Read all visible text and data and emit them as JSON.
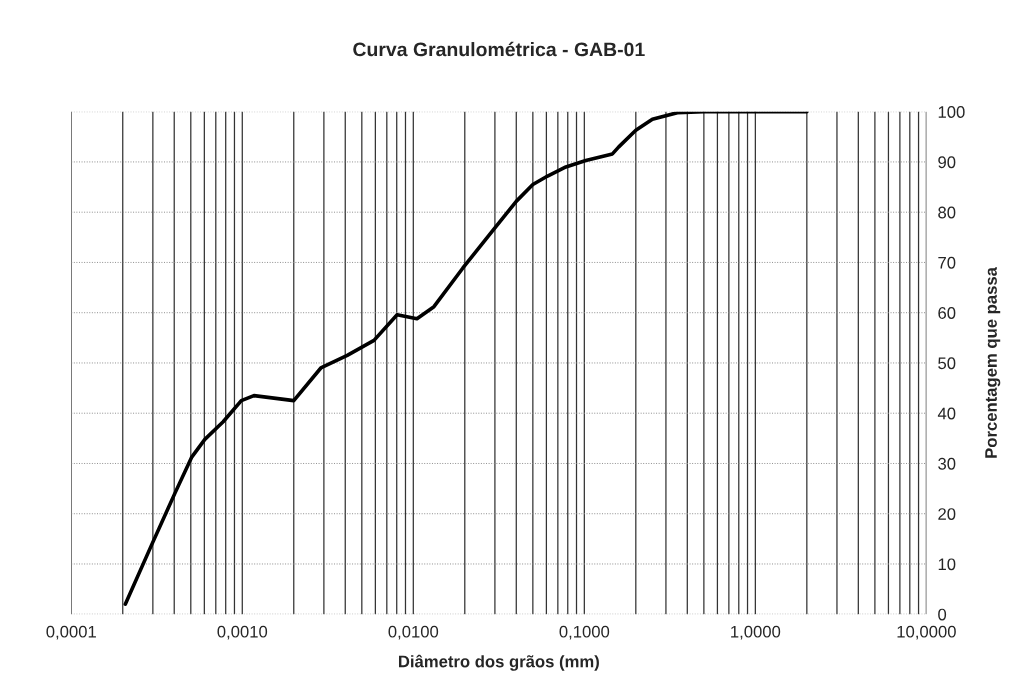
{
  "chart_data": {
    "type": "line",
    "title": "Curva Granulométrica - GAB-01",
    "xlabel": "Diâmetro dos grãos (mm)",
    "ylabel": "Porcentagem que passa",
    "log": "x",
    "grid": true,
    "marker": "none",
    "line_style": "solid",
    "x": [
      0.000207,
      0.000296,
      0.000404,
      0.000505,
      0.000604,
      0.000773,
      0.000987,
      0.00117,
      0.002,
      0.00288,
      0.00411,
      0.00589,
      0.00804,
      0.0105,
      0.0132,
      0.0195,
      0.0292,
      0.0401,
      0.05,
      0.061,
      0.078,
      0.102,
      0.146,
      0.159,
      0.2,
      0.25,
      0.35,
      0.5,
      1.0,
      2.0
    ],
    "series": [
      {
        "color": "#000000",
        "values": [
          2,
          13.9,
          24.1,
          31.2,
          34.8,
          38.3,
          42.5,
          43.5,
          42.5,
          49,
          51.5,
          54.5,
          59.6,
          58.8,
          61.2,
          68.9,
          76.4,
          82.2,
          85.5,
          87.2,
          89,
          90.3,
          91.6,
          93,
          96.3,
          98.5,
          99.8,
          100,
          100,
          100
        ]
      }
    ],
    "xlim": [
      0.0001,
      10
    ],
    "ylim": [
      0,
      100
    ],
    "xticks": [
      {
        "value": 0.0001,
        "label": "0,0001"
      },
      {
        "value": 0.0002,
        "label": null
      },
      {
        "value": 0.0003,
        "label": null
      },
      {
        "value": 0.0004,
        "label": null
      },
      {
        "value": 0.0005,
        "label": null
      },
      {
        "value": 0.0006,
        "label": null
      },
      {
        "value": 0.0007,
        "label": null
      },
      {
        "value": 0.0008,
        "label": null
      },
      {
        "value": 0.0009,
        "label": null
      },
      {
        "value": 0.001,
        "label": "0,0010"
      },
      {
        "value": 0.002,
        "label": null
      },
      {
        "value": 0.003,
        "label": null
      },
      {
        "value": 0.004,
        "label": null
      },
      {
        "value": 0.005,
        "label": null
      },
      {
        "value": 0.006,
        "label": null
      },
      {
        "value": 0.007,
        "label": null
      },
      {
        "value": 0.008,
        "label": null
      },
      {
        "value": 0.009,
        "label": null
      },
      {
        "value": 0.01,
        "label": "0,0100"
      },
      {
        "value": 0.02,
        "label": null
      },
      {
        "value": 0.03,
        "label": null
      },
      {
        "value": 0.04,
        "label": null
      },
      {
        "value": 0.05,
        "label": null
      },
      {
        "value": 0.06,
        "label": null
      },
      {
        "value": 0.07,
        "label": null
      },
      {
        "value": 0.08,
        "label": null
      },
      {
        "value": 0.09,
        "label": null
      },
      {
        "value": 0.1,
        "label": "0,1000"
      },
      {
        "value": 0.2,
        "label": null
      },
      {
        "value": 0.3,
        "label": null
      },
      {
        "value": 0.4,
        "label": null
      },
      {
        "value": 0.5,
        "label": null
      },
      {
        "value": 0.6,
        "label": null
      },
      {
        "value": 0.7,
        "label": null
      },
      {
        "value": 0.8,
        "label": null
      },
      {
        "value": 0.9,
        "label": null
      },
      {
        "value": 1,
        "label": "1,0000"
      },
      {
        "value": 2,
        "label": null
      },
      {
        "value": 3,
        "label": null
      },
      {
        "value": 4,
        "label": null
      },
      {
        "value": 5,
        "label": null
      },
      {
        "value": 6,
        "label": null
      },
      {
        "value": 7,
        "label": null
      },
      {
        "value": 8,
        "label": null
      },
      {
        "value": 9,
        "label": null
      },
      {
        "value": 10,
        "label": "10,0000"
      }
    ],
    "yticks": [
      0,
      10,
      20,
      30,
      40,
      50,
      60,
      70,
      80,
      90,
      100
    ]
  }
}
